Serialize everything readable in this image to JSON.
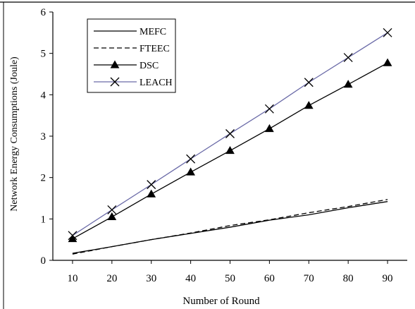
{
  "chart_data": {
    "type": "line",
    "title": "",
    "xlabel": "Number of Round",
    "ylabel": "Network Energy Consumptions (Joule)",
    "x": [
      10,
      20,
      30,
      40,
      50,
      60,
      70,
      80,
      90
    ],
    "xlim": [
      5,
      95
    ],
    "ylim": [
      0,
      6
    ],
    "yticks": [
      0,
      1,
      2,
      3,
      4,
      5,
      6
    ],
    "grid": false,
    "legend_position": "top-left",
    "series": [
      {
        "name": "MEFC",
        "values": [
          0.17,
          0.33,
          0.5,
          0.65,
          0.8,
          0.97,
          1.1,
          1.27,
          1.42
        ],
        "color": "#000000",
        "dash": "solid",
        "marker": "none"
      },
      {
        "name": "FTEEC",
        "values": [
          0.15,
          0.33,
          0.5,
          0.66,
          0.84,
          0.98,
          1.15,
          1.3,
          1.47
        ],
        "color": "#000000",
        "dash": "dashed",
        "marker": "none"
      },
      {
        "name": "DSC",
        "values": [
          0.52,
          1.05,
          1.6,
          2.13,
          2.65,
          3.18,
          3.74,
          4.25,
          4.77
        ],
        "color": "#000000",
        "dash": "solid",
        "marker": "triangle"
      },
      {
        "name": "LEACH",
        "values": [
          0.6,
          1.22,
          1.83,
          2.45,
          3.06,
          3.66,
          4.3,
          4.9,
          5.5
        ],
        "color": "#6b6ba8",
        "dash": "solid",
        "marker": "x"
      }
    ]
  }
}
